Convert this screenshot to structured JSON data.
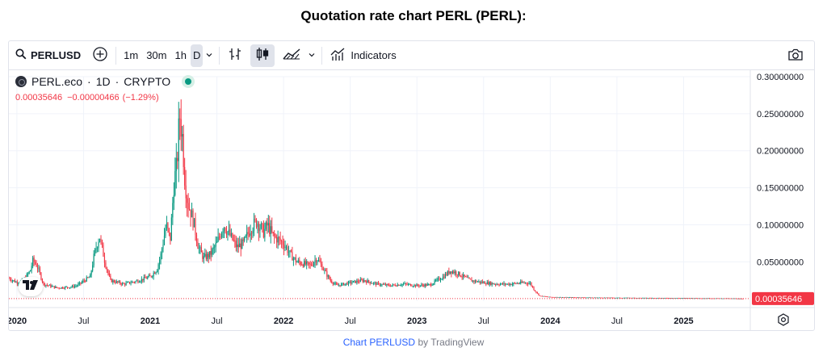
{
  "page": {
    "title": "Quotation rate chart PERL (PERL):"
  },
  "toolbar": {
    "symbol": "PERLUSD",
    "intervals": [
      "1m",
      "30m",
      "1h",
      "D"
    ],
    "active_interval": "D",
    "indicators_label": "Indicators"
  },
  "legend": {
    "symbol_name": "PERL.eco",
    "interval": "1D",
    "exchange": "CRYPTO",
    "separator": "·",
    "last_price": "0.00035646",
    "change": "−0.00000466",
    "change_pct": "(−1.29%)"
  },
  "colors": {
    "up": "#089981",
    "down": "#f23645",
    "grid": "#f0f3fa",
    "axis_text": "#131722",
    "price_tag_bg": "#f23645"
  },
  "chart_data": {
    "type": "line",
    "title": "",
    "subtitle": "",
    "xlabel": "",
    "ylabel": "",
    "ylim": [
      -0.003,
      0.3
    ],
    "y_ticks": [
      "0.30000000",
      "0.25000000",
      "0.20000000",
      "0.15000000",
      "0.10000000",
      "0.05000000"
    ],
    "y_tick_values": [
      0.3,
      0.25,
      0.2,
      0.15,
      0.1,
      0.05
    ],
    "x_ticks": [
      "2020",
      "Jul",
      "2021",
      "Jul",
      "2022",
      "Jul",
      "2023",
      "Jul",
      "2024",
      "Jul",
      "2025"
    ],
    "x_tick_bold": [
      true,
      false,
      true,
      false,
      true,
      false,
      true,
      false,
      true,
      false,
      true
    ],
    "x_tick_values": [
      2020.0,
      2020.5,
      2021.0,
      2021.5,
      2022.0,
      2022.5,
      2023.0,
      2023.5,
      2024.0,
      2024.5,
      2025.0
    ],
    "xlim": [
      2019.94,
      2025.5
    ],
    "last_price_label": "0.00035646",
    "last_price": 0.00035646,
    "grid": true,
    "series": [
      {
        "x": [
          2019.94,
          2020.0,
          2020.05,
          2020.1,
          2020.12,
          2020.15,
          2020.2,
          2020.3,
          2020.4,
          2020.45,
          2020.55,
          2020.58,
          2020.62,
          2020.66,
          2020.7,
          2020.8,
          2020.9,
          2021.0,
          2021.05,
          2021.08,
          2021.12,
          2021.15,
          2021.18,
          2021.2,
          2021.22,
          2021.24,
          2021.26,
          2021.28,
          2021.3,
          2021.33,
          2021.36,
          2021.4,
          2021.45,
          2021.5,
          2021.55,
          2021.6,
          2021.65,
          2021.7,
          2021.75,
          2021.8,
          2021.85,
          2021.88,
          2021.92,
          2022.0,
          2022.05,
          2022.1,
          2022.2,
          2022.25,
          2022.3,
          2022.35,
          2022.4,
          2022.45,
          2022.5,
          2022.6,
          2022.7,
          2022.8,
          2022.9,
          2023.0,
          2023.1,
          2023.15,
          2023.2,
          2023.25,
          2023.3,
          2023.4,
          2023.5,
          2023.6,
          2023.7,
          2023.8,
          2023.85,
          2023.88,
          2023.92,
          2024.0,
          2024.2,
          2024.5,
          2024.8,
          2025.0,
          2025.2,
          2025.4,
          2025.45
        ],
        "values": [
          0.028,
          0.022,
          0.025,
          0.038,
          0.052,
          0.045,
          0.02,
          0.015,
          0.016,
          0.018,
          0.03,
          0.06,
          0.085,
          0.05,
          0.025,
          0.02,
          0.024,
          0.03,
          0.04,
          0.06,
          0.1,
          0.08,
          0.16,
          0.18,
          0.25,
          0.22,
          0.16,
          0.13,
          0.12,
          0.1,
          0.07,
          0.055,
          0.06,
          0.075,
          0.1,
          0.085,
          0.07,
          0.075,
          0.095,
          0.105,
          0.09,
          0.1,
          0.085,
          0.075,
          0.06,
          0.05,
          0.045,
          0.055,
          0.04,
          0.025,
          0.018,
          0.02,
          0.022,
          0.025,
          0.02,
          0.018,
          0.02,
          0.018,
          0.019,
          0.025,
          0.03,
          0.038,
          0.035,
          0.025,
          0.022,
          0.02,
          0.02,
          0.022,
          0.021,
          0.012,
          0.004,
          0.0025,
          0.002,
          0.0015,
          0.0012,
          0.001,
          0.0008,
          0.0005,
          0.00036
        ]
      }
    ]
  }
}
